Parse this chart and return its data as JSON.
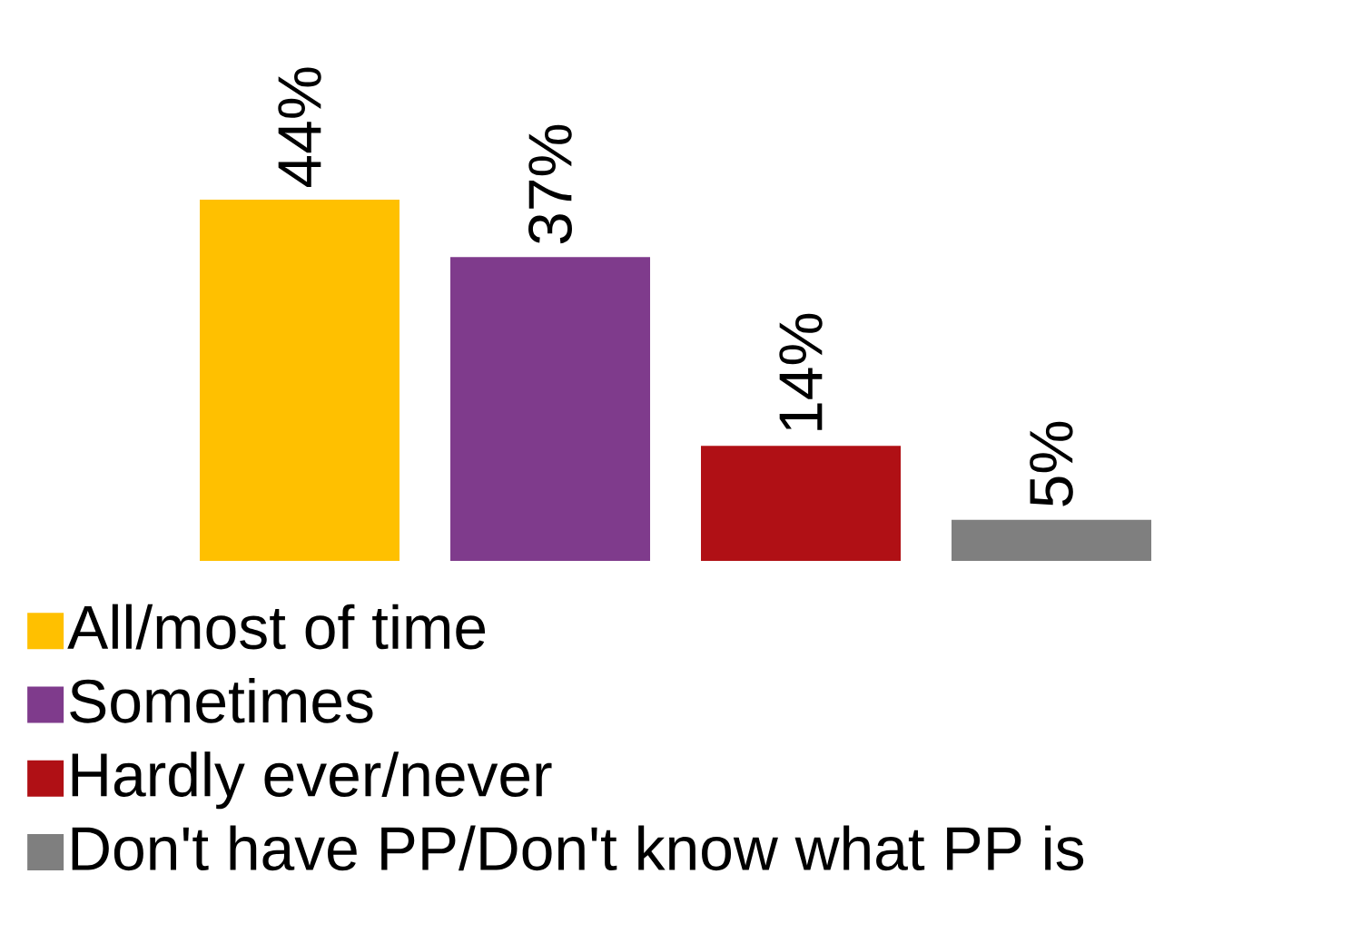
{
  "chart_data": {
    "type": "bar",
    "categories": [
      null
    ],
    "series": [
      {
        "name": "All/most of time",
        "color": "#ffc000",
        "values": [
          44
        ],
        "value_labels": [
          "44%"
        ]
      },
      {
        "name": "Sometimes",
        "color": "#7f3b8c",
        "values": [
          37
        ],
        "value_labels": [
          "37%"
        ]
      },
      {
        "name": "Hardly ever/never",
        "color": "#b01015",
        "values": [
          14
        ],
        "value_labels": [
          "14%"
        ]
      },
      {
        "name": "Don't have PP/Don't know what PP is",
        "color": "#7f7f7f",
        "values": [
          5
        ],
        "value_labels": [
          "5%"
        ]
      }
    ],
    "legend": "bottom"
  }
}
